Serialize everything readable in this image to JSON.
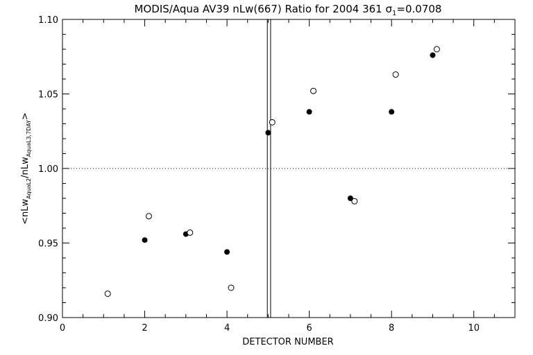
{
  "chart_data": {
    "type": "scatter",
    "title": "MODIS/Aqua AV39 nLw(667) Ratio for 2004 361 σ",
    "title_sigma_sub": "1",
    "title_suffix": "=0.0708",
    "xlabel": "DETECTOR NUMBER",
    "ylabel": {
      "open": "<nLw",
      "sub1": "AquaL2",
      "mid": "/nLw",
      "sub2": "AquaL3,7DAY",
      "close": ">"
    },
    "xlim": [
      0,
      11
    ],
    "ylim": [
      0.9,
      1.1
    ],
    "x_ticks": [
      0,
      2,
      4,
      6,
      8,
      10
    ],
    "x_tick_labels": [
      "0",
      "2",
      "4",
      "6",
      "8",
      "10"
    ],
    "x_minor_step": 0.5,
    "y_ticks": [
      0.9,
      0.95,
      1.0,
      1.05,
      1.1
    ],
    "y_tick_labels": [
      "0.90",
      "0.95",
      "1.00",
      "1.05",
      "1.10"
    ],
    "y_minor_step": 0.01,
    "reference_line_y": 1.0,
    "vertical_lines_x": [
      4.98,
      5.06
    ],
    "grid": false,
    "series": [
      {
        "marker": "filled-circle",
        "x": [
          2,
          3,
          4,
          5,
          6,
          7,
          8,
          9
        ],
        "y": [
          0.952,
          0.956,
          0.944,
          1.024,
          1.038,
          0.98,
          1.038,
          1.076
        ]
      },
      {
        "marker": "open-circle",
        "x": [
          1.1,
          2.1,
          3.1,
          4.1,
          5.1,
          6.1,
          7.1,
          8.1,
          9.1
        ],
        "y": [
          0.916,
          0.968,
          0.957,
          0.92,
          1.031,
          1.052,
          0.978,
          1.063,
          1.08
        ]
      }
    ],
    "colors": {
      "foreground": "#000000",
      "background": "#ffffff"
    }
  }
}
